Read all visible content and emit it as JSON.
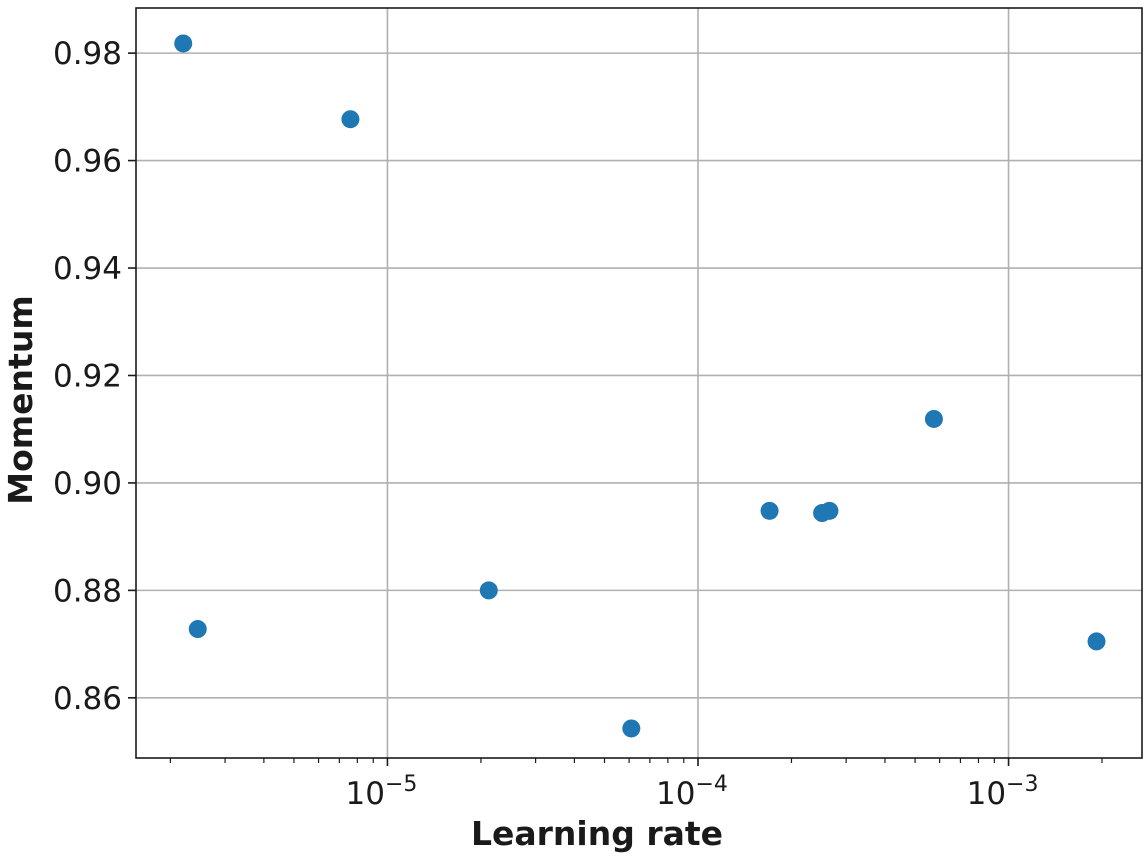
{
  "chart_data": {
    "type": "scatter",
    "title": "",
    "xlabel": "Learning rate",
    "ylabel": "Momentum",
    "x_scale": "log",
    "xlim": [
      1.55e-06,
      0.00269
    ],
    "ylim": [
      0.8488,
      0.9884
    ],
    "grid": true,
    "legend": "none",
    "marker_color": "#1f77b4",
    "x_ticks": [
      {
        "value": 1e-05,
        "base": "10",
        "exp": "−5"
      },
      {
        "value": 0.0001,
        "base": "10",
        "exp": "−4"
      },
      {
        "value": 0.001,
        "base": "10",
        "exp": "−3"
      }
    ],
    "y_ticks": [
      {
        "value": 0.86,
        "label": "0.86"
      },
      {
        "value": 0.88,
        "label": "0.88"
      },
      {
        "value": 0.9,
        "label": "0.90"
      },
      {
        "value": 0.92,
        "label": "0.92"
      },
      {
        "value": 0.94,
        "label": "0.94"
      },
      {
        "value": 0.96,
        "label": "0.96"
      },
      {
        "value": 0.98,
        "label": "0.98"
      }
    ],
    "points": [
      {
        "x": 2.2e-06,
        "y": 0.9818
      },
      {
        "x": 2.45e-06,
        "y": 0.8728
      },
      {
        "x": 7.6e-06,
        "y": 0.9677
      },
      {
        "x": 2.12e-05,
        "y": 0.88
      },
      {
        "x": 6.1e-05,
        "y": 0.8543
      },
      {
        "x": 0.00017,
        "y": 0.8948
      },
      {
        "x": 0.000251,
        "y": 0.8944
      },
      {
        "x": 0.000265,
        "y": 0.8948
      },
      {
        "x": 0.000575,
        "y": 0.9119
      },
      {
        "x": 0.00192,
        "y": 0.8705
      }
    ]
  }
}
